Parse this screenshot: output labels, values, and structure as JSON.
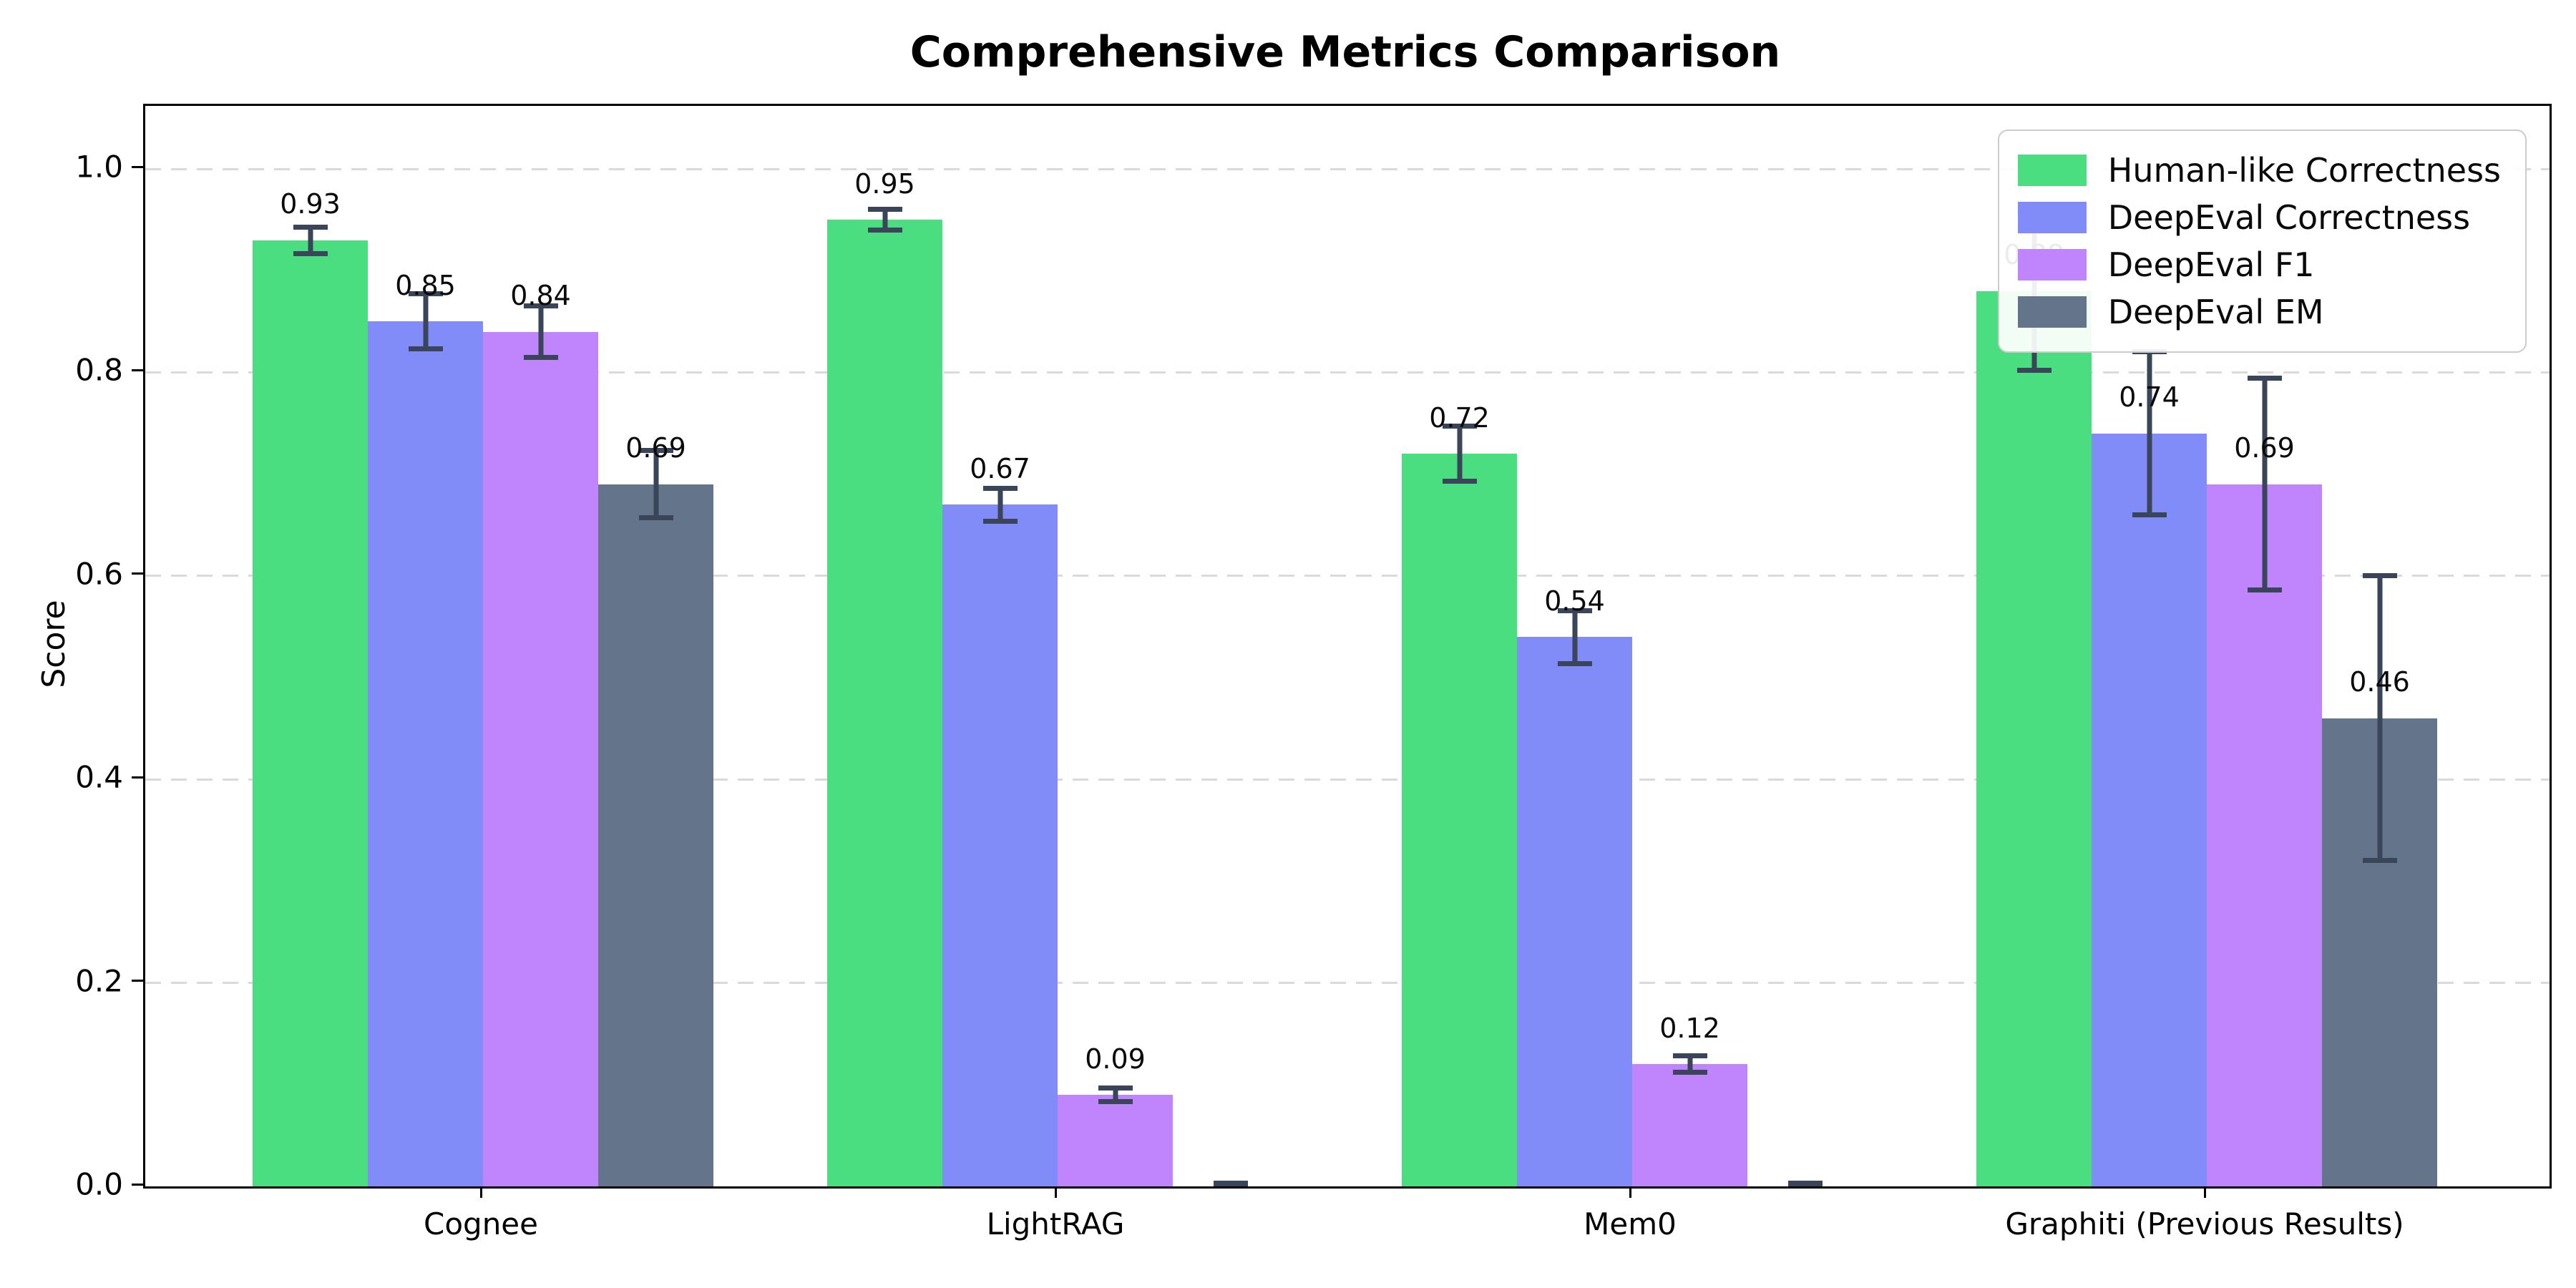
{
  "title": "Comprehensive Metrics Comparison",
  "ylabel": "Score",
  "chart_data": {
    "type": "bar",
    "title": "Comprehensive Metrics Comparison",
    "xlabel": "",
    "ylabel": "Score",
    "categories": [
      "Cognee",
      "LightRAG",
      "Mem0",
      "Graphiti (Previous Results)"
    ],
    "series": [
      {
        "name": "Human-like Correctness",
        "color": "#4ade80",
        "values": [
          0.93,
          0.95,
          0.72,
          0.88
        ],
        "errors": [
          0.013,
          0.01,
          0.027,
          0.078
        ],
        "labels": [
          "0.93",
          "0.95",
          "0.72",
          "0.88"
        ]
      },
      {
        "name": "DeepEval Correctness",
        "color": "#818cf8",
        "values": [
          0.85,
          0.67,
          0.54,
          0.74
        ],
        "errors": [
          0.027,
          0.016,
          0.026,
          0.08
        ],
        "labels": [
          "0.85",
          "0.67",
          "0.54",
          "0.74"
        ]
      },
      {
        "name": "DeepEval F1",
        "color": "#c084fc",
        "values": [
          0.84,
          0.09,
          0.12,
          0.69
        ],
        "errors": [
          0.025,
          0.007,
          0.008,
          0.104
        ],
        "labels": [
          "0.84",
          "0.09",
          "0.12",
          "0.69"
        ]
      },
      {
        "name": "DeepEval EM",
        "color": "#64748b",
        "values": [
          0.69,
          0.0,
          0.0,
          0.46
        ],
        "errors": [
          0.033,
          0.003,
          0.003,
          0.14
        ],
        "labels": [
          "0.69",
          "",
          "",
          "0.46"
        ]
      }
    ],
    "yticks": [
      "0.0",
      "0.2",
      "0.4",
      "0.6",
      "0.8",
      "1.0"
    ],
    "ylim": [
      0.0,
      1.06
    ],
    "grid": "dashed horizontal at each y tick",
    "legend_position": "upper right",
    "error_bar_color": "#3a4559"
  }
}
